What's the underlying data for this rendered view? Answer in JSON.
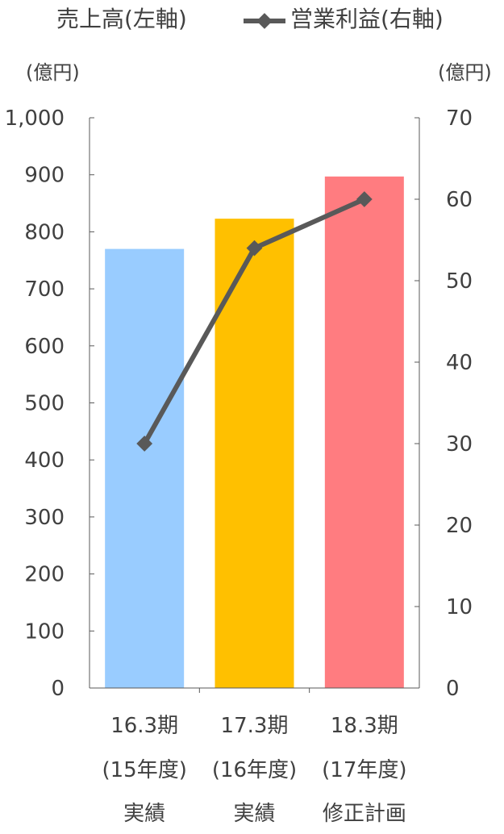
{
  "chart_data": {
    "type": "bar+line",
    "legend": {
      "bar_label": "売上高(左軸)",
      "line_label": "営業利益(右軸)",
      "position": "top"
    },
    "left_axis": {
      "unit_label": "(億円)",
      "ylim": [
        0,
        1000
      ],
      "ticks": [
        "0",
        "100",
        "200",
        "300",
        "400",
        "500",
        "600",
        "700",
        "800",
        "900",
        "1,000"
      ]
    },
    "right_axis": {
      "unit_label": "(億円)",
      "ylim": [
        0,
        70
      ],
      "ticks": [
        "0",
        "10",
        "20",
        "30",
        "40",
        "50",
        "60",
        "70"
      ]
    },
    "categories": [
      [
        "16.3期",
        "(15年度)",
        "実績"
      ],
      [
        "17.3期",
        "(16年度)",
        "実績"
      ],
      [
        "18.3期",
        "(17年度)",
        "修正計画"
      ]
    ],
    "series": [
      {
        "name": "売上高(左軸)",
        "type": "bar",
        "axis": "left",
        "values": [
          770,
          823,
          897
        ],
        "colors": [
          "#99ccff",
          "#ffc000",
          "#ff7c80"
        ]
      },
      {
        "name": "営業利益(右軸)",
        "type": "line",
        "axis": "right",
        "values": [
          30,
          54,
          60
        ],
        "color": "#595959"
      }
    ],
    "grid": false
  }
}
